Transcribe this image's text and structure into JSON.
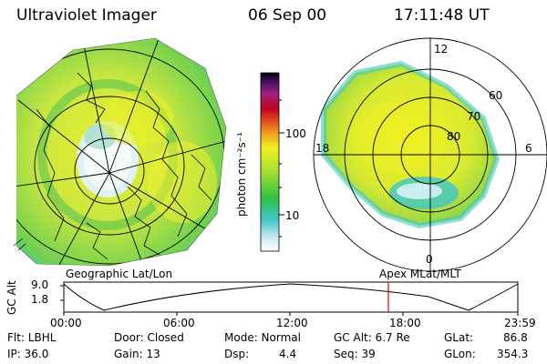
{
  "header": {
    "instrument": "Ultraviolet Imager",
    "date": "06 Sep 00",
    "time": "17:11:48 UT"
  },
  "colorbar": {
    "unit_label": "photon cm⁻²s⁻¹",
    "ticks": [
      "100",
      "10"
    ]
  },
  "left_panel": {
    "coord_label": "Geographic Lat/Lon"
  },
  "right_panel": {
    "coord_label": "Apex MLat/MLT",
    "mlt_labels": [
      "12",
      "18",
      "6",
      "0"
    ],
    "lat_labels": [
      "60",
      "70",
      "80"
    ]
  },
  "timeline": {
    "axis_label": "GC Alt",
    "y_ticks": [
      "9.0",
      "1.8"
    ],
    "x_ticks": [
      "00:00",
      "06:00",
      "12:00",
      "18:00",
      "23:59"
    ],
    "marker_time": "17:11:48"
  },
  "info": {
    "flt": "Flt: LBHL",
    "ip": "IP: 36.0",
    "door": "Door: Closed",
    "gain": "Gain: 13",
    "mode": "Mode: Normal",
    "dsp_label": "Dsp:",
    "dsp_value": "4.4",
    "gc_alt": "GC Alt: 6.7 Re",
    "seq": "Seq: 39",
    "glat_label": "GLat:",
    "glat_value": "86.8",
    "glon_label": "GLon:",
    "glon_value": "354.3"
  },
  "colors": {
    "auroral_fill": "#c8e63c",
    "auroral_edge": "#3ec6c8",
    "auroral_core": "#e8f020",
    "marker": "#e00000"
  }
}
